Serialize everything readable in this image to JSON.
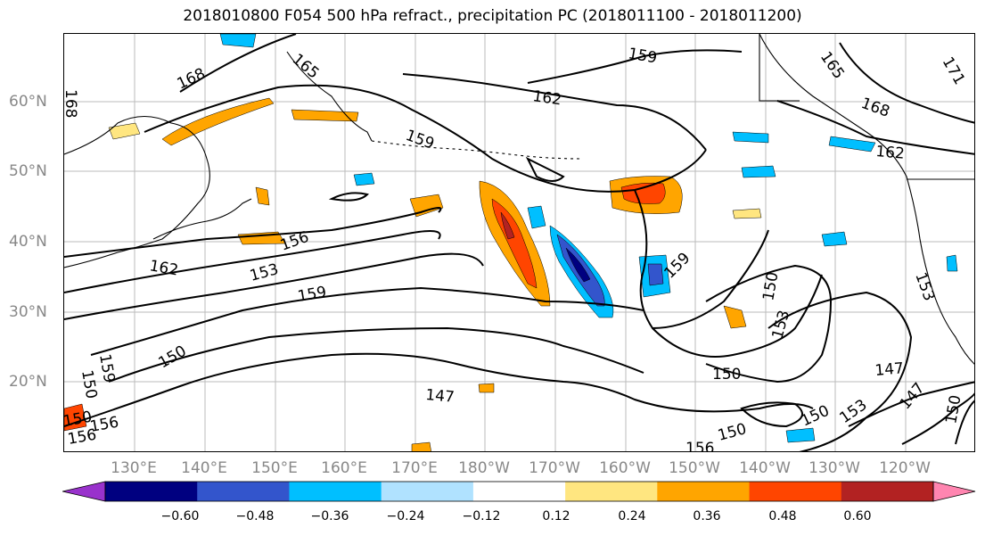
{
  "title": "2018010800 F054 500 hPa refract., precipitation PC (2018011100 - 2018011200)",
  "latitude_labels": [
    "60°N",
    "50°N",
    "40°N",
    "30°N",
    "20°N"
  ],
  "longitude_labels": [
    "130°E",
    "140°E",
    "150°E",
    "160°E",
    "170°E",
    "180°W",
    "170°W",
    "160°W",
    "150°W",
    "140°W",
    "130°W",
    "120°W"
  ],
  "colorbar": {
    "colors": [
      "#9932cc",
      "#000080",
      "#3355cc",
      "#00bfff",
      "#b0e2ff",
      "#ffffff",
      "#ffe680",
      "#ffa500",
      "#ff4500",
      "#b22222",
      "#ff85b0"
    ],
    "tick_labels": [
      "−0.60",
      "−0.48",
      "−0.36",
      "−0.24",
      "−0.12",
      "0.12",
      "0.24",
      "0.36",
      "0.48",
      "0.60"
    ]
  },
  "contour_labels": [
    "168",
    "165",
    "159",
    "162",
    "159",
    "165",
    "168",
    "162",
    "171",
    "168",
    "162",
    "156",
    "153",
    "159",
    "159",
    "150",
    "150",
    "153",
    "150",
    "147",
    "150",
    "150",
    "153",
    "147",
    "147",
    "156",
    "150",
    "159",
    "150",
    "156",
    "153",
    "150",
    "156"
  ]
}
